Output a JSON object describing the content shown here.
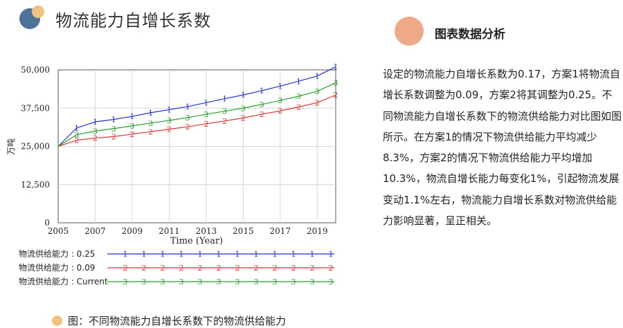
{
  "header": {
    "title": "物流能力自增长系数"
  },
  "analysis": {
    "title": "图表数据分析",
    "text": "设定的物流能力自增长系数为0.17，方案1将物流自增长系数调整为0.09，方案2将其调整为0.25。不同物流能力自增长系数下的物流供给能力对比图如图所示。在方案1的情况下物流供给能力平均减少8.3%，方案2的情况下物流供给能力平均增加10.3%，物流自增长能力每变化1%，引起物流发展变动1.1%左右，物流能力自增长系数对物流供给能力影响显著，呈正相关。"
  },
  "caption": {
    "text": "图：不同物流能力自增长系数下的物流供给能力"
  },
  "colors": {
    "series1": "#1f2fd6",
    "series2": "#e03030",
    "series3": "#22a02a"
  },
  "chart_data": {
    "type": "line",
    "xlabel": "Time (Year)",
    "ylabel": "万吨",
    "xlim": [
      2005,
      2020
    ],
    "ylim": [
      0,
      50000
    ],
    "x_ticks": [
      "2005",
      "2007",
      "2009",
      "2011",
      "2013",
      "2015",
      "2017",
      "2019"
    ],
    "y_ticks": [
      "50,000",
      "37,500",
      "25,000",
      "12,500",
      "0"
    ],
    "x": [
      2005,
      2006,
      2007,
      2008,
      2009,
      2010,
      2011,
      2012,
      2013,
      2014,
      2015,
      2016,
      2017,
      2018,
      2019,
      2020
    ],
    "series": [
      {
        "name": "物流供给能力 : 0.25",
        "marker": "1",
        "values": [
          25000,
          31000,
          33000,
          33800,
          34800,
          36000,
          37000,
          38000,
          39300,
          40600,
          41800,
          43200,
          44700,
          46300,
          48000,
          51000
        ]
      },
      {
        "name": "物流供给能力 : 0.09",
        "marker": "2",
        "values": [
          25000,
          27000,
          27700,
          28200,
          29000,
          29800,
          30600,
          31400,
          32400,
          33300,
          34300,
          35500,
          36600,
          37900,
          39300,
          41800
        ]
      },
      {
        "name": "物流供给能力 : Current",
        "marker": "3",
        "values": [
          25000,
          28800,
          30000,
          30800,
          31700,
          32600,
          33500,
          34400,
          35500,
          36500,
          37500,
          38700,
          40000,
          41400,
          43000,
          45800
        ]
      }
    ],
    "legend_position": "bottom"
  }
}
